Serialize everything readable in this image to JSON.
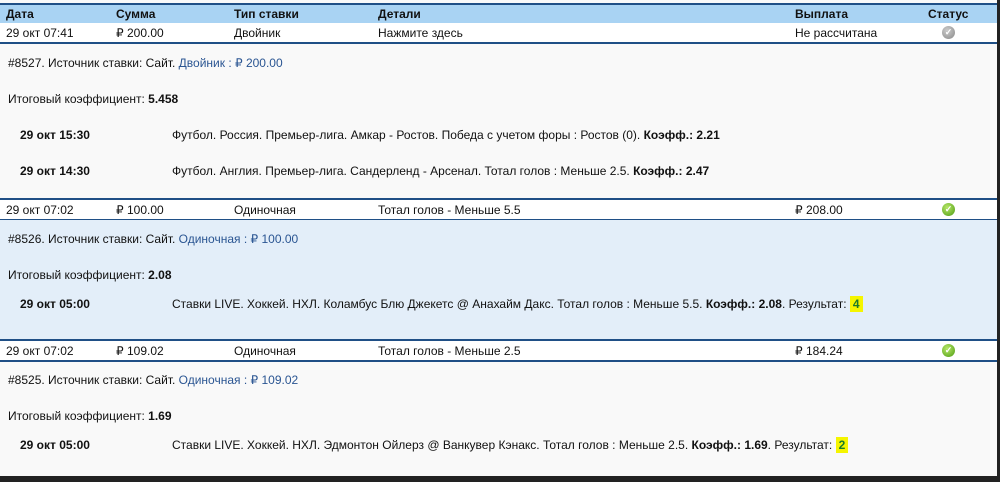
{
  "columns": {
    "date": "Дата",
    "amount": "Сумма",
    "type": "Тип ставки",
    "details": "Детали",
    "payout": "Выплата",
    "status": "Статус"
  },
  "bets": [
    {
      "date": "29 окт 07:41",
      "amount": "₽ 200.00",
      "type": "Двойник",
      "details": "Нажмите здесь",
      "payout": "Не рассчитана",
      "status": "pending",
      "status_icon": "check-grey-icon",
      "info_prefix": "#8527. Источник ставки: Сайт.",
      "info_link": "Двойник : ₽ 200.00",
      "total_label": "Итоговый коэффициент:",
      "total_value": "5.458",
      "selections": [
        {
          "date": "29 окт 15:30",
          "text": "Футбол. Россия. Премьер-лига. Амкар - Ростов. Победа с учетом форы : Ростов (0).",
          "odds_label": "Коэфф.:",
          "odds": "2.21",
          "result_label": "",
          "result": ""
        },
        {
          "date": "29 окт 14:30",
          "text": "Футбол. Англия. Премьер-лига. Сандерленд - Арсенал. Тотал голов : Меньше 2.5.",
          "odds_label": "Коэфф.:",
          "odds": "2.47",
          "result_label": "",
          "result": ""
        }
      ]
    },
    {
      "date": "29 окт 07:02",
      "amount": "₽ 100.00",
      "type": "Одиночная",
      "details": "Тотал голов - Меньше 5.5",
      "payout": "₽ 208.00",
      "status": "won",
      "status_icon": "check-green-icon",
      "info_prefix": "#8526. Источник ставки: Сайт.",
      "info_link": "Одиночная : ₽ 100.00",
      "total_label": "Итоговый коэффициент:",
      "total_value": "2.08",
      "selections": [
        {
          "date": "29 окт 05:00",
          "text": "Ставки LIVE. Хоккей. НХЛ. Коламбус Блю Джекетс @ Анахайм Дакс. Тотал голов : Меньше 5.5.",
          "odds_label": "Коэфф.:",
          "odds": "2.08",
          "result_label": ". Результат:",
          "result": "4"
        }
      ]
    },
    {
      "date": "29 окт 07:02",
      "amount": "₽ 109.02",
      "type": "Одиночная",
      "details": "Тотал голов - Меньше 2.5",
      "payout": "₽ 184.24",
      "status": "won",
      "status_icon": "check-green-icon",
      "info_prefix": "#8525. Источник ставки: Сайт.",
      "info_link": "Одиночная : ₽ 109.02",
      "total_label": "Итоговый коэффициент:",
      "total_value": "1.69",
      "selections": [
        {
          "date": "29 окт 05:00",
          "text": "Ставки LIVE. Хоккей. НХЛ. Эдмонтон Ойлерз @ Ванкувер Кэнакс. Тотал голов : Меньше 2.5.",
          "odds_label": "Коэфф.:",
          "odds": "1.69",
          "result_label": ". Результат:",
          "result": "2"
        }
      ]
    }
  ]
}
